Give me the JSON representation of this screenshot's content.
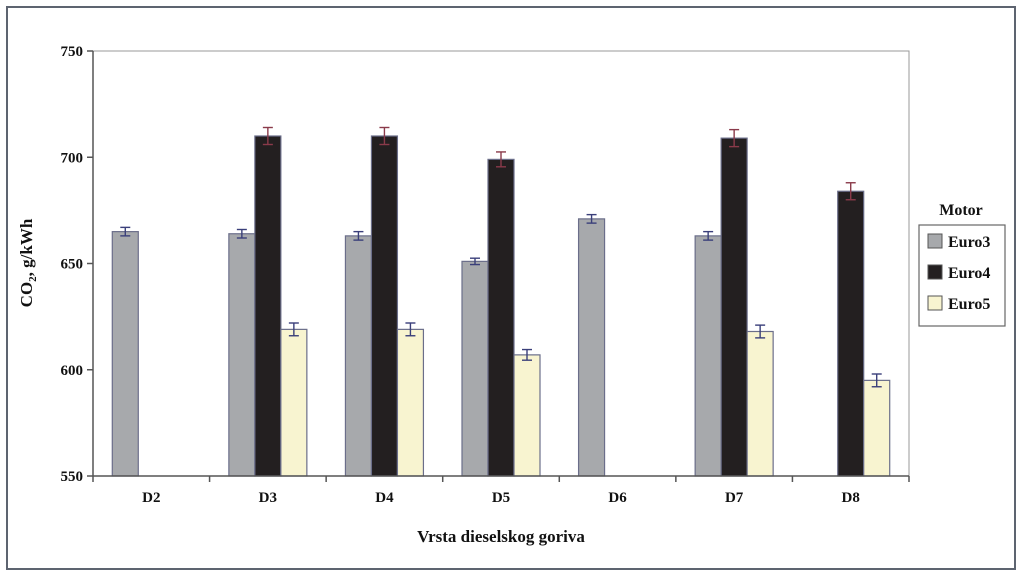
{
  "chart_data": {
    "type": "bar",
    "title": "",
    "xlabel": "Vrsta dieselskog goriva",
    "ylabel_main": "CO",
    "ylabel_sub": "2",
    "ylabel_rest": ", g/kWh",
    "ylim": [
      550,
      750
    ],
    "yticks": [
      550,
      600,
      650,
      700,
      750
    ],
    "categories": [
      "D2",
      "D3",
      "D4",
      "D5",
      "D6",
      "D7",
      "D8"
    ],
    "series": [
      {
        "name": "Euro3",
        "color": "#a7a9ac",
        "values": [
          665,
          664,
          663,
          651,
          671,
          663,
          null
        ],
        "errors": [
          2,
          2,
          2,
          1.5,
          2,
          2,
          null
        ]
      },
      {
        "name": "Euro4",
        "color": "#231f20",
        "values": [
          null,
          710,
          710,
          699,
          null,
          709,
          684
        ],
        "errors": [
          null,
          4,
          4,
          3.5,
          null,
          4,
          4
        ]
      },
      {
        "name": "Euro5",
        "color": "#f8f4d0",
        "values": [
          null,
          619,
          619,
          607,
          null,
          618,
          595
        ],
        "errors": [
          null,
          3,
          3,
          2.5,
          null,
          3,
          3
        ]
      }
    ],
    "grid": false,
    "legend": {
      "title": "Motor",
      "position": "right"
    }
  }
}
